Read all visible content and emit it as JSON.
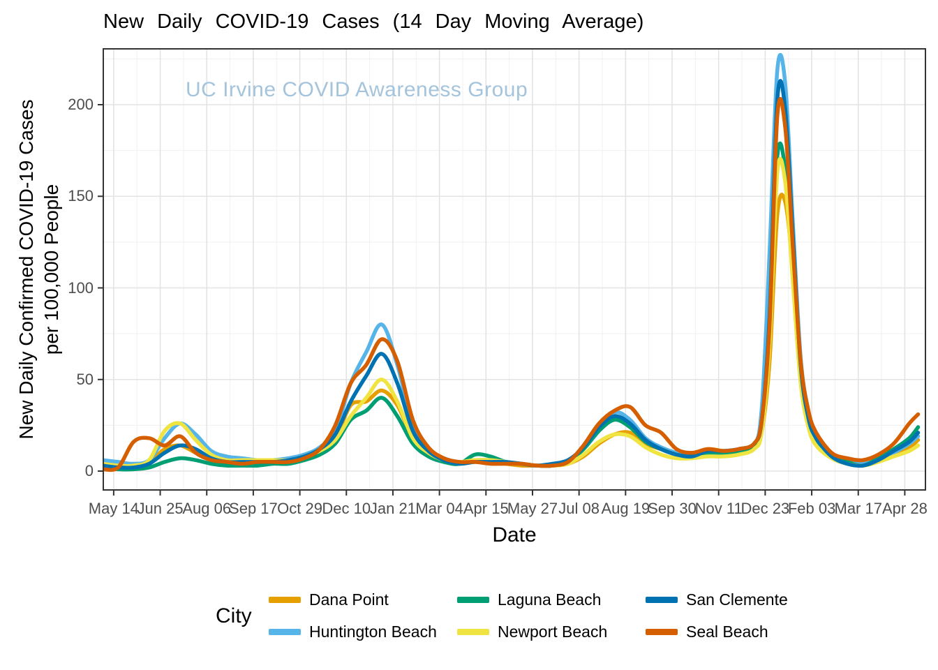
{
  "header": {
    "title": "New Daily COVID-19 Cases (14 Day Moving Average)"
  },
  "watermark": {
    "text": "UC Irvine COVID Awareness Group",
    "color": "#a4c4dc"
  },
  "chart_data": {
    "type": "line",
    "title": "New Daily COVID-19 Cases (14 Day Moving Average)",
    "xlabel": "Date",
    "ylabel_line1": "New Daily Confirmed COVID-19 Cases",
    "ylabel_line2": "per 100,000 People",
    "legend_title": "City",
    "legend_position": "bottom",
    "grid": "on",
    "y_ticks": [
      0,
      50,
      100,
      150,
      200
    ],
    "y_minor_ticks": [
      25,
      75,
      125,
      175,
      225
    ],
    "ylim": [
      -11,
      231
    ],
    "x_tick_labels": [
      "May 14",
      "Jun 25",
      "Aug 06",
      "Sep 17",
      "Oct 29",
      "Dec 10",
      "Jan 21",
      "Mar 04",
      "Apr 15",
      "May 27",
      "Jul 08",
      "Aug 19",
      "Sep 30",
      "Nov 11",
      "Dec 23",
      "Feb 03",
      "Mar 17",
      "Apr 28"
    ],
    "x_tick_start_day": 10,
    "x_tick_interval_days": 42,
    "x_note": "x values are day offsets; tick labels span May 2020 - Apr 2022 at 42-day intervals",
    "x_days": [
      0,
      14,
      28,
      42,
      56,
      70,
      84,
      98,
      112,
      126,
      140,
      154,
      168,
      182,
      196,
      210,
      224,
      238,
      252,
      266,
      280,
      294,
      308,
      322,
      336,
      350,
      364,
      378,
      392,
      406,
      420,
      434,
      448,
      462,
      476,
      490,
      504,
      518,
      532,
      546,
      560,
      574,
      588,
      595,
      602,
      609,
      616,
      623,
      630,
      637,
      644,
      658,
      672,
      686,
      700,
      714,
      728,
      736
    ],
    "series": [
      {
        "name": "Dana Point",
        "color": "#E69F00",
        "values": [
          2,
          2,
          3,
          5,
          12,
          14,
          10,
          6,
          4,
          4,
          4,
          5,
          5,
          7,
          10,
          18,
          36,
          38,
          44,
          36,
          18,
          10,
          6,
          4,
          5,
          5,
          4,
          3,
          3,
          3,
          4,
          8,
          15,
          20,
          21,
          15,
          12,
          10,
          9,
          12,
          11,
          10,
          13,
          22,
          60,
          140,
          147,
          110,
          55,
          28,
          17,
          9,
          6,
          5,
          7,
          10,
          13,
          17
        ]
      },
      {
        "name": "Huntington Beach",
        "color": "#56B4E9",
        "values": [
          6,
          5,
          4,
          6,
          18,
          26,
          20,
          11,
          8,
          7,
          6,
          6,
          7,
          9,
          13,
          22,
          48,
          65,
          80,
          58,
          25,
          12,
          7,
          5,
          6,
          6,
          5,
          4,
          3,
          3,
          5,
          12,
          22,
          32,
          28,
          18,
          13,
          10,
          9,
          10,
          10,
          11,
          14,
          35,
          120,
          219,
          212,
          135,
          62,
          33,
          20,
          9,
          5,
          4,
          6,
          10,
          15,
          19
        ]
      },
      {
        "name": "Laguna Beach",
        "color": "#009E73",
        "values": [
          2,
          1,
          1,
          2,
          5,
          7,
          6,
          4,
          3,
          3,
          3,
          4,
          4,
          6,
          9,
          15,
          28,
          33,
          40,
          30,
          15,
          8,
          5,
          4,
          9,
          8,
          5,
          4,
          3,
          3,
          5,
          12,
          22,
          28,
          24,
          16,
          12,
          9,
          8,
          10,
          10,
          11,
          14,
          25,
          80,
          172,
          165,
          108,
          54,
          28,
          16,
          8,
          5,
          3,
          7,
          12,
          18,
          24
        ]
      },
      {
        "name": "Newport Beach",
        "color": "#F0E442",
        "values": [
          4,
          3,
          3,
          6,
          22,
          26,
          17,
          9,
          6,
          6,
          6,
          6,
          6,
          8,
          11,
          17,
          30,
          40,
          50,
          38,
          18,
          10,
          6,
          5,
          6,
          6,
          5,
          4,
          3,
          3,
          4,
          9,
          16,
          20,
          19,
          13,
          9,
          7,
          7,
          8,
          8,
          9,
          12,
          22,
          70,
          163,
          158,
          103,
          48,
          24,
          14,
          7,
          4,
          3,
          5,
          8,
          11,
          14
        ]
      },
      {
        "name": "San Clemente",
        "color": "#0072B2",
        "values": [
          3,
          2,
          2,
          4,
          10,
          14,
          12,
          7,
          5,
          5,
          5,
          5,
          6,
          8,
          12,
          20,
          38,
          52,
          64,
          48,
          22,
          11,
          6,
          4,
          5,
          5,
          5,
          4,
          3,
          4,
          6,
          13,
          24,
          30,
          26,
          17,
          12,
          9,
          8,
          11,
          11,
          12,
          15,
          28,
          85,
          203,
          198,
          128,
          58,
          29,
          18,
          8,
          4,
          3,
          6,
          11,
          16,
          21
        ]
      },
      {
        "name": "Seal Beach",
        "color": "#D55E00",
        "values": [
          1,
          2,
          16,
          18,
          14,
          19,
          10,
          6,
          5,
          4,
          5,
          5,
          5,
          7,
          12,
          25,
          48,
          58,
          72,
          60,
          28,
          13,
          7,
          5,
          5,
          4,
          4,
          4,
          3,
          3,
          5,
          14,
          26,
          33,
          35,
          25,
          21,
          12,
          10,
          12,
          11,
          12,
          15,
          28,
          80,
          194,
          188,
          122,
          60,
          33,
          21,
          10,
          7,
          6,
          9,
          15,
          26,
          31
        ]
      }
    ]
  }
}
